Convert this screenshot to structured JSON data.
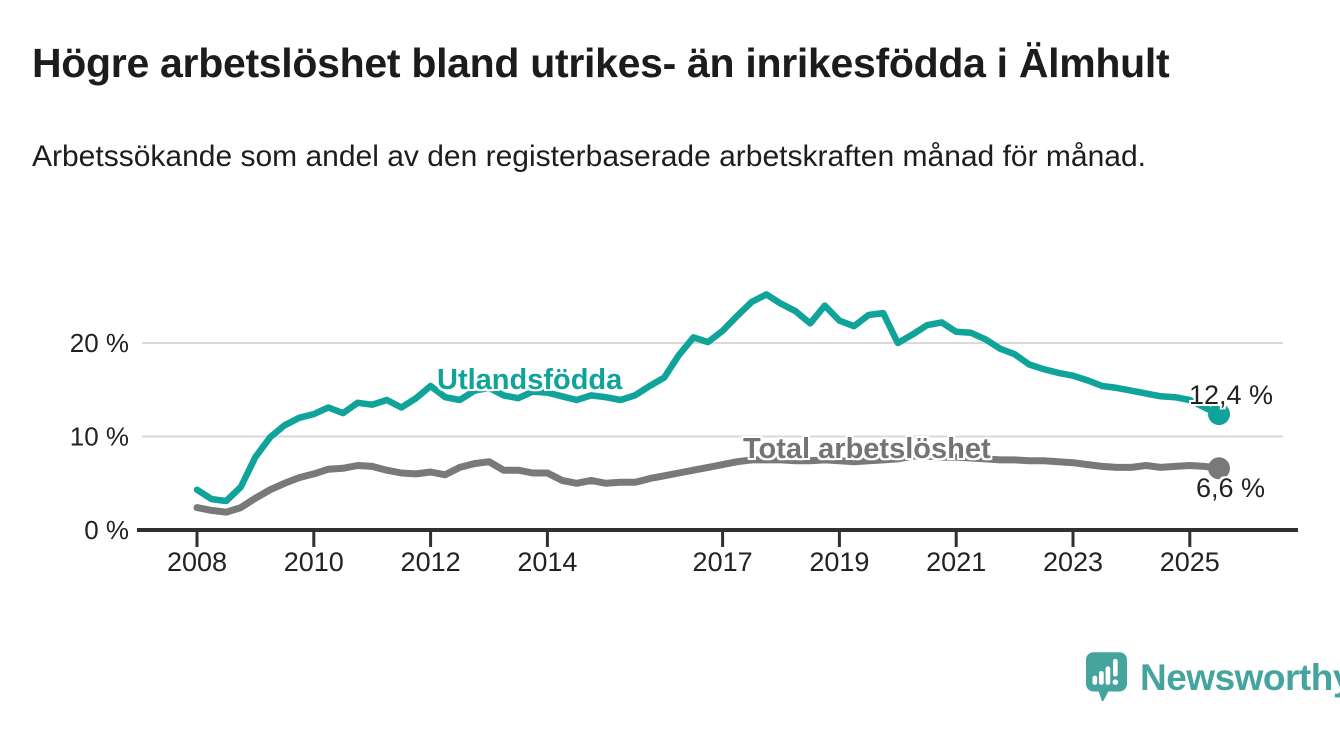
{
  "header": {
    "title": "Högre arbetslöshet bland utrikes- än inrikesfödda i Älmhult",
    "subtitle": "Arbetssökande som andel av den registerbaserade arbetskraften månad för månad."
  },
  "chart_data": {
    "type": "line",
    "unit": "%",
    "x_start": 2008,
    "x_step": 0.25,
    "x_end": 2025.5,
    "ylim": [
      0,
      27
    ],
    "grid": "horizontal-only",
    "gridlines_at": [
      10,
      20
    ],
    "y_ticks": [
      {
        "value": 0,
        "label": "0 %"
      },
      {
        "value": 10,
        "label": "10 %"
      },
      {
        "value": 20,
        "label": "20 %"
      }
    ],
    "x_ticks": [
      {
        "value": 2008,
        "label": "2008"
      },
      {
        "value": 2010,
        "label": "2010"
      },
      {
        "value": 2012,
        "label": "2012"
      },
      {
        "value": 2014,
        "label": "2014"
      },
      {
        "value": 2017,
        "label": "2017"
      },
      {
        "value": 2019,
        "label": "2019"
      },
      {
        "value": 2021,
        "label": "2021"
      },
      {
        "value": 2023,
        "label": "2023"
      },
      {
        "value": 2025,
        "label": "2025"
      }
    ],
    "series": [
      {
        "id": "utlandsfodda",
        "name": "Utlandsfödda",
        "color": "#0fa39a",
        "end_label": "12,4 %",
        "end_value": 12.4,
        "values": [
          4.3,
          3.3,
          3.1,
          4.6,
          7.8,
          9.9,
          11.2,
          12.0,
          12.4,
          13.1,
          12.5,
          13.6,
          13.4,
          13.9,
          13.1,
          14.1,
          15.4,
          14.2,
          13.9,
          14.9,
          15.2,
          14.4,
          14.1,
          14.8,
          14.7,
          14.3,
          13.9,
          14.4,
          14.2,
          13.9,
          14.4,
          15.4,
          16.3,
          18.7,
          20.6,
          20.1,
          21.3,
          22.9,
          24.4,
          25.2,
          24.2,
          23.4,
          22.1,
          24.0,
          22.4,
          21.8,
          23.0,
          23.2,
          20.0,
          20.9,
          21.9,
          22.2,
          21.2,
          21.1,
          20.4,
          19.4,
          18.8,
          17.7,
          17.2,
          16.8,
          16.5,
          16.0,
          15.4,
          15.2,
          14.9,
          14.6,
          14.3,
          14.2,
          13.9,
          13.1,
          12.4
        ]
      },
      {
        "id": "total",
        "name": "Total arbetslöshet",
        "color": "#797979",
        "end_label": "6,6 %",
        "end_value": 6.6,
        "values": [
          2.4,
          2.1,
          1.9,
          2.4,
          3.4,
          4.3,
          5.0,
          5.6,
          6.0,
          6.5,
          6.6,
          6.9,
          6.8,
          6.4,
          6.1,
          6.0,
          6.2,
          5.9,
          6.7,
          7.1,
          7.3,
          6.4,
          6.4,
          6.1,
          6.1,
          5.3,
          5.0,
          5.3,
          5.0,
          5.1,
          5.1,
          5.5,
          5.8,
          6.1,
          6.4,
          6.7,
          7.0,
          7.3,
          7.5,
          7.5,
          7.5,
          7.4,
          7.4,
          7.5,
          7.4,
          7.3,
          7.4,
          7.5,
          7.6,
          7.9,
          7.9,
          7.8,
          7.8,
          7.7,
          7.6,
          7.5,
          7.5,
          7.4,
          7.4,
          7.3,
          7.2,
          7.0,
          6.8,
          6.7,
          6.7,
          6.9,
          6.7,
          6.8,
          6.9,
          6.8,
          6.6
        ]
      }
    ]
  },
  "branding": {
    "logo_text": "Newsworthy",
    "logo_color": "#46a49e"
  },
  "palette": {
    "axis": "#303030",
    "gridline": "#d9d9d9",
    "tick_text": "#222222"
  }
}
